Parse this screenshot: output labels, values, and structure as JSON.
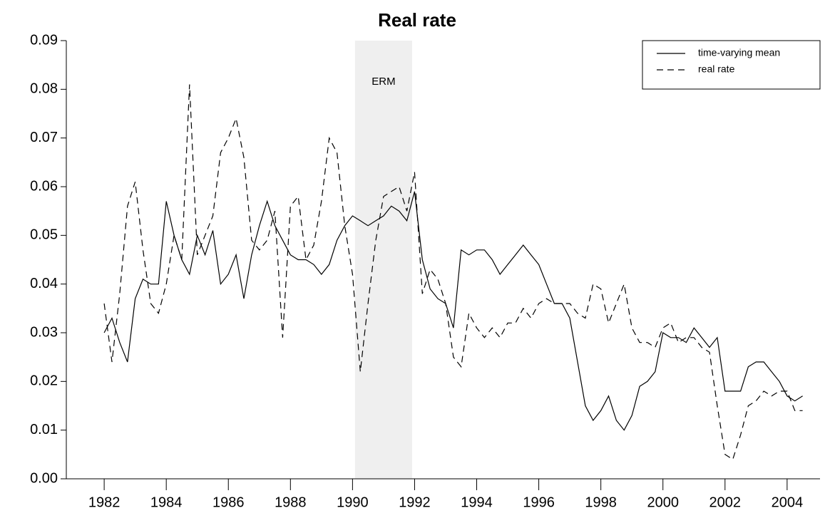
{
  "chart_data": {
    "type": "line",
    "title": "Real rate",
    "x": [
      1982.0,
      1982.25,
      1982.5,
      1982.75,
      1983.0,
      1983.25,
      1983.5,
      1983.75,
      1984.0,
      1984.25,
      1984.5,
      1984.75,
      1985.0,
      1985.25,
      1985.5,
      1985.75,
      1986.0,
      1986.25,
      1986.5,
      1986.75,
      1987.0,
      1987.25,
      1987.5,
      1987.75,
      1988.0,
      1988.25,
      1988.5,
      1988.75,
      1989.0,
      1989.25,
      1989.5,
      1989.75,
      1990.0,
      1990.25,
      1990.5,
      1990.75,
      1991.0,
      1991.25,
      1991.5,
      1991.75,
      1992.0,
      1992.25,
      1992.5,
      1992.75,
      1993.0,
      1993.25,
      1993.5,
      1993.75,
      1994.0,
      1994.25,
      1994.5,
      1994.75,
      1995.0,
      1995.25,
      1995.5,
      1995.75,
      1996.0,
      1996.25,
      1996.5,
      1996.75,
      1997.0,
      1997.25,
      1997.5,
      1997.75,
      1998.0,
      1998.25,
      1998.5,
      1998.75,
      1999.0,
      1999.25,
      1999.5,
      1999.75,
      2000.0,
      2000.25,
      2000.5,
      2000.75,
      2001.0,
      2001.25,
      2001.5,
      2001.75,
      2002.0,
      2002.25,
      2002.5,
      2002.75,
      2003.0,
      2003.25,
      2003.5,
      2003.75,
      2004.0,
      2004.25,
      2004.5
    ],
    "series": [
      {
        "name": "time-varying mean",
        "color": "#000000",
        "linestyle": "solid",
        "values": [
          0.03,
          0.033,
          0.028,
          0.024,
          0.037,
          0.041,
          0.04,
          0.04,
          0.057,
          0.05,
          0.045,
          0.042,
          0.05,
          0.046,
          0.051,
          0.04,
          0.042,
          0.046,
          0.037,
          0.046,
          0.052,
          0.057,
          0.052,
          0.049,
          0.046,
          0.045,
          0.045,
          0.044,
          0.042,
          0.044,
          0.049,
          0.052,
          0.054,
          0.053,
          0.052,
          0.053,
          0.054,
          0.056,
          0.055,
          0.053,
          0.059,
          0.045,
          0.039,
          0.037,
          0.036,
          0.031,
          0.047,
          0.046,
          0.047,
          0.047,
          0.045,
          0.042,
          0.044,
          0.046,
          0.048,
          0.046,
          0.044,
          0.04,
          0.036,
          0.036,
          0.033,
          0.024,
          0.015,
          0.012,
          0.014,
          0.017,
          0.012,
          0.01,
          0.013,
          0.019,
          0.02,
          0.022,
          0.03,
          0.029,
          0.029,
          0.028,
          0.031,
          0.029,
          0.027,
          0.029,
          0.018,
          0.018,
          0.018,
          0.023,
          0.024,
          0.024,
          0.022,
          0.02,
          0.017,
          0.016,
          0.017
        ]
      },
      {
        "name": "real rate",
        "color": "#000000",
        "linestyle": "dashed",
        "values": [
          0.036,
          0.024,
          0.038,
          0.056,
          0.061,
          0.047,
          0.036,
          0.034,
          0.04,
          0.05,
          0.045,
          0.081,
          0.046,
          0.05,
          0.054,
          0.067,
          0.07,
          0.074,
          0.066,
          0.049,
          0.047,
          0.049,
          0.055,
          0.029,
          0.056,
          0.058,
          0.045,
          0.048,
          0.057,
          0.07,
          0.067,
          0.052,
          0.042,
          0.022,
          0.036,
          0.049,
          0.058,
          0.059,
          0.06,
          0.055,
          0.063,
          0.038,
          0.043,
          0.041,
          0.036,
          0.025,
          0.023,
          0.034,
          0.031,
          0.029,
          0.031,
          0.029,
          0.032,
          0.032,
          0.035,
          0.033,
          0.036,
          0.037,
          0.036,
          0.036,
          0.036,
          0.034,
          0.033,
          0.04,
          0.039,
          0.032,
          0.036,
          0.04,
          0.031,
          0.028,
          0.028,
          0.027,
          0.031,
          0.032,
          0.028,
          0.029,
          0.029,
          0.027,
          0.026,
          0.015,
          0.005,
          0.004,
          0.009,
          0.015,
          0.016,
          0.018,
          0.017,
          0.018,
          0.018,
          0.014,
          0.014
        ]
      }
    ],
    "shaded_regions": [
      {
        "label": "ERM",
        "xrange": [
          1990.08,
          1991.92
        ],
        "color": "#efefef"
      }
    ],
    "xlim": [
      1980.78,
      2005.06
    ],
    "xticks": [
      1982,
      1984,
      1986,
      1988,
      1990,
      1992,
      1994,
      1996,
      1998,
      2000,
      2002,
      2004
    ],
    "ylim": [
      0,
      0.09
    ],
    "yticks": [
      {
        "value": 0,
        "label": "0.00"
      },
      0.01,
      0.02,
      0.03,
      0.04,
      0.05,
      0.06,
      0.07,
      0.08,
      0.09
    ],
    "grid": false,
    "legend": "top-right"
  }
}
